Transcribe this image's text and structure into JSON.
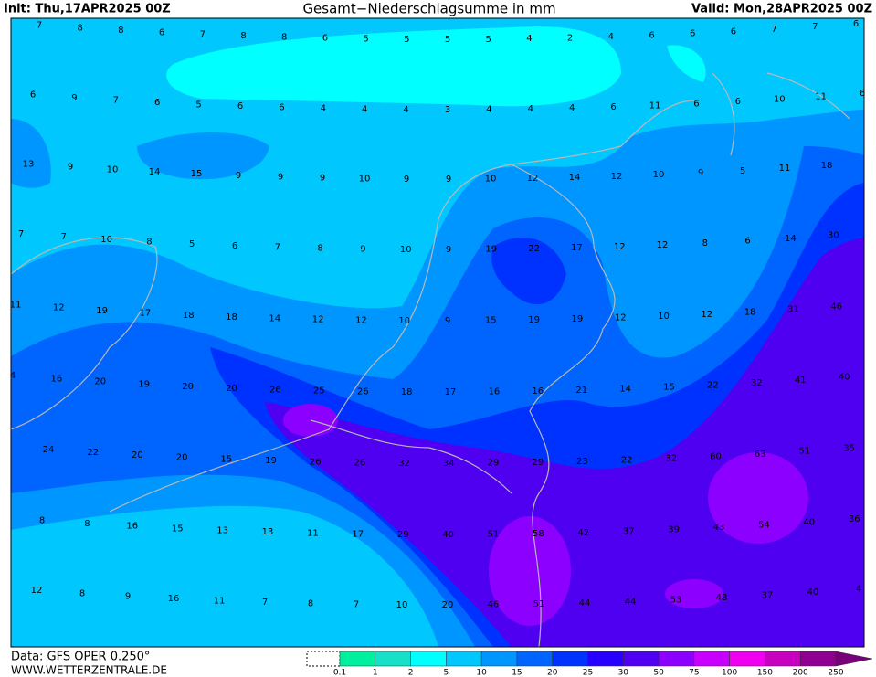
{
  "header": {
    "init": "Init: Thu,17APR2025 00Z",
    "title": "Gesamt−Niederschlagsumme in mm",
    "valid": "Valid: Mon,28APR2025 00Z"
  },
  "grid_values": [
    [
      7,
      8,
      8,
      6,
      7,
      8,
      8,
      6,
      5,
      5,
      5,
      5,
      4,
      2,
      4,
      6,
      6,
      6,
      7,
      7,
      6
    ],
    [
      6,
      9,
      7,
      6,
      5,
      6,
      6,
      4,
      4,
      4,
      3,
      4,
      4,
      4,
      6,
      11,
      6,
      6,
      10,
      11,
      6
    ],
    [
      13,
      9,
      10,
      14,
      15,
      9,
      9,
      9,
      10,
      9,
      9,
      10,
      12,
      14,
      12,
      10,
      9,
      5,
      11,
      18
    ],
    [
      7,
      7,
      10,
      8,
      5,
      6,
      7,
      8,
      9,
      10,
      9,
      19,
      22,
      17,
      12,
      12,
      8,
      6,
      14,
      30
    ],
    [
      11,
      12,
      19,
      17,
      18,
      18,
      14,
      12,
      12,
      10,
      9,
      15,
      19,
      19,
      12,
      10,
      12,
      18,
      31,
      46
    ],
    [
      4,
      16,
      20,
      19,
      20,
      20,
      26,
      25,
      26,
      18,
      17,
      16,
      16,
      21,
      14,
      15,
      22,
      32,
      41,
      40
    ],
    [
      24,
      22,
      20,
      20,
      15,
      19,
      26,
      26,
      32,
      34,
      29,
      29,
      23,
      22,
      32,
      60,
      63,
      51,
      35
    ],
    [
      8,
      8,
      16,
      15,
      13,
      13,
      11,
      17,
      29,
      40,
      51,
      58,
      42,
      37,
      39,
      43,
      54,
      40,
      36
    ],
    [
      12,
      8,
      9,
      16,
      11,
      7,
      8,
      7,
      10,
      20,
      46,
      51,
      44,
      44,
      53,
      48,
      37,
      40,
      4
    ]
  ],
  "legend": {
    "labels": [
      0.1,
      1,
      2,
      5,
      10,
      15,
      20,
      25,
      30,
      50,
      75,
      100,
      150,
      200,
      250
    ],
    "colors": [
      "#00f0a0",
      "#18e0c8",
      "#00ffff",
      "#00c8ff",
      "#0096ff",
      "#0064ff",
      "#0032ff",
      "#2800ff",
      "#5000f0",
      "#8c00ff",
      "#c800ff",
      "#f000f0",
      "#c800c0",
      "#900090",
      "#780078"
    ]
  },
  "footer": {
    "source": "Data: GFS OPER 0.250°",
    "site": "WWW.WETTERZENTRALE.DE"
  }
}
